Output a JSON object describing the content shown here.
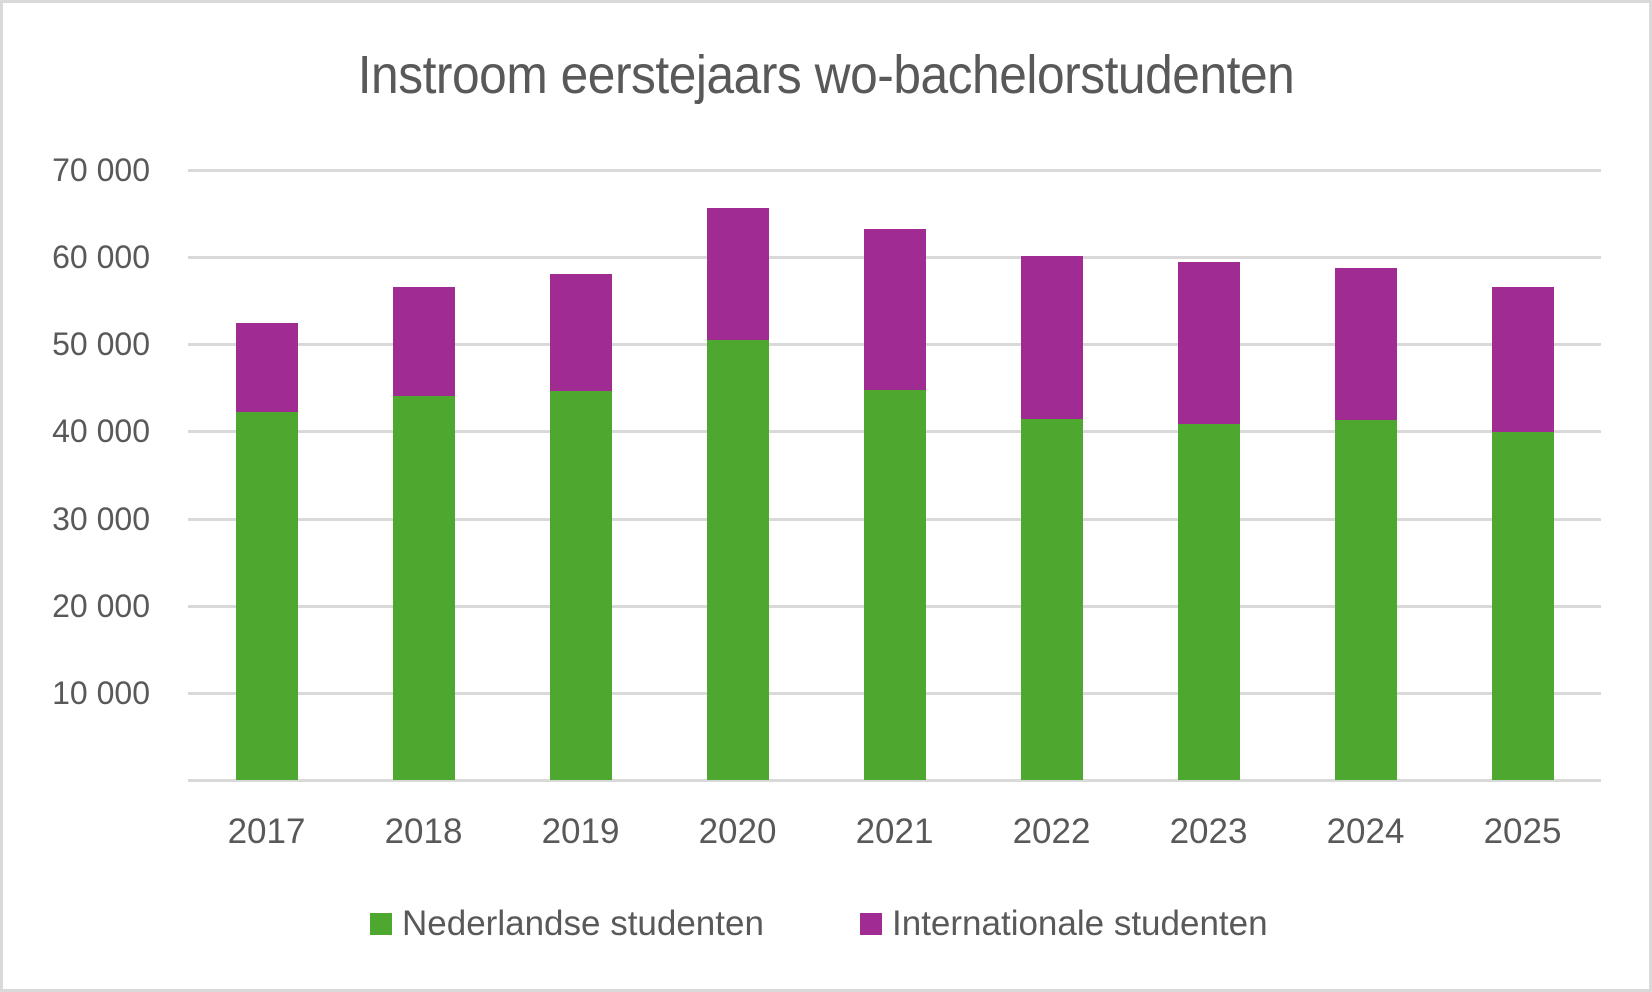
{
  "chart_data": {
    "type": "bar",
    "stacked": true,
    "title": "Instroom eerstejaars wo-bachelorstudenten",
    "xlabel": "",
    "ylabel": "",
    "ylim": [
      0,
      70000
    ],
    "yticks": [
      0,
      10000,
      20000,
      30000,
      40000,
      50000,
      60000,
      70000
    ],
    "ytick_labels": [
      "",
      "10 000",
      "20 000",
      "30 000",
      "40 000",
      "50 000",
      "60 000",
      "70 000"
    ],
    "grid": true,
    "legend_position": "bottom",
    "categories": [
      "2017",
      "2018",
      "2019",
      "2020",
      "2021",
      "2022",
      "2023",
      "2024",
      "2025"
    ],
    "series": [
      {
        "name": "Nederlandse studenten",
        "color": "#4ea72e",
        "values": [
          42200,
          44100,
          44600,
          50500,
          44800,
          41400,
          40800,
          41300,
          39900
        ]
      },
      {
        "name": "Internationale studenten",
        "color": "#a02b93",
        "values": [
          10300,
          12500,
          13500,
          15100,
          18400,
          18700,
          18600,
          17400,
          16700
        ]
      }
    ],
    "totals": [
      52500,
      56600,
      58100,
      65600,
      63200,
      60100,
      59400,
      58700,
      56600
    ]
  },
  "colors": {
    "dutch": "#4ea72e",
    "international": "#a02b93",
    "text": "#595959",
    "grid": "#d9d9d9",
    "border": "#d9d9d9"
  },
  "legend": {
    "items": [
      {
        "label": "Nederlandse studenten",
        "color": "#4ea72e"
      },
      {
        "label": "Internationale studenten",
        "color": "#a02b93"
      }
    ]
  }
}
